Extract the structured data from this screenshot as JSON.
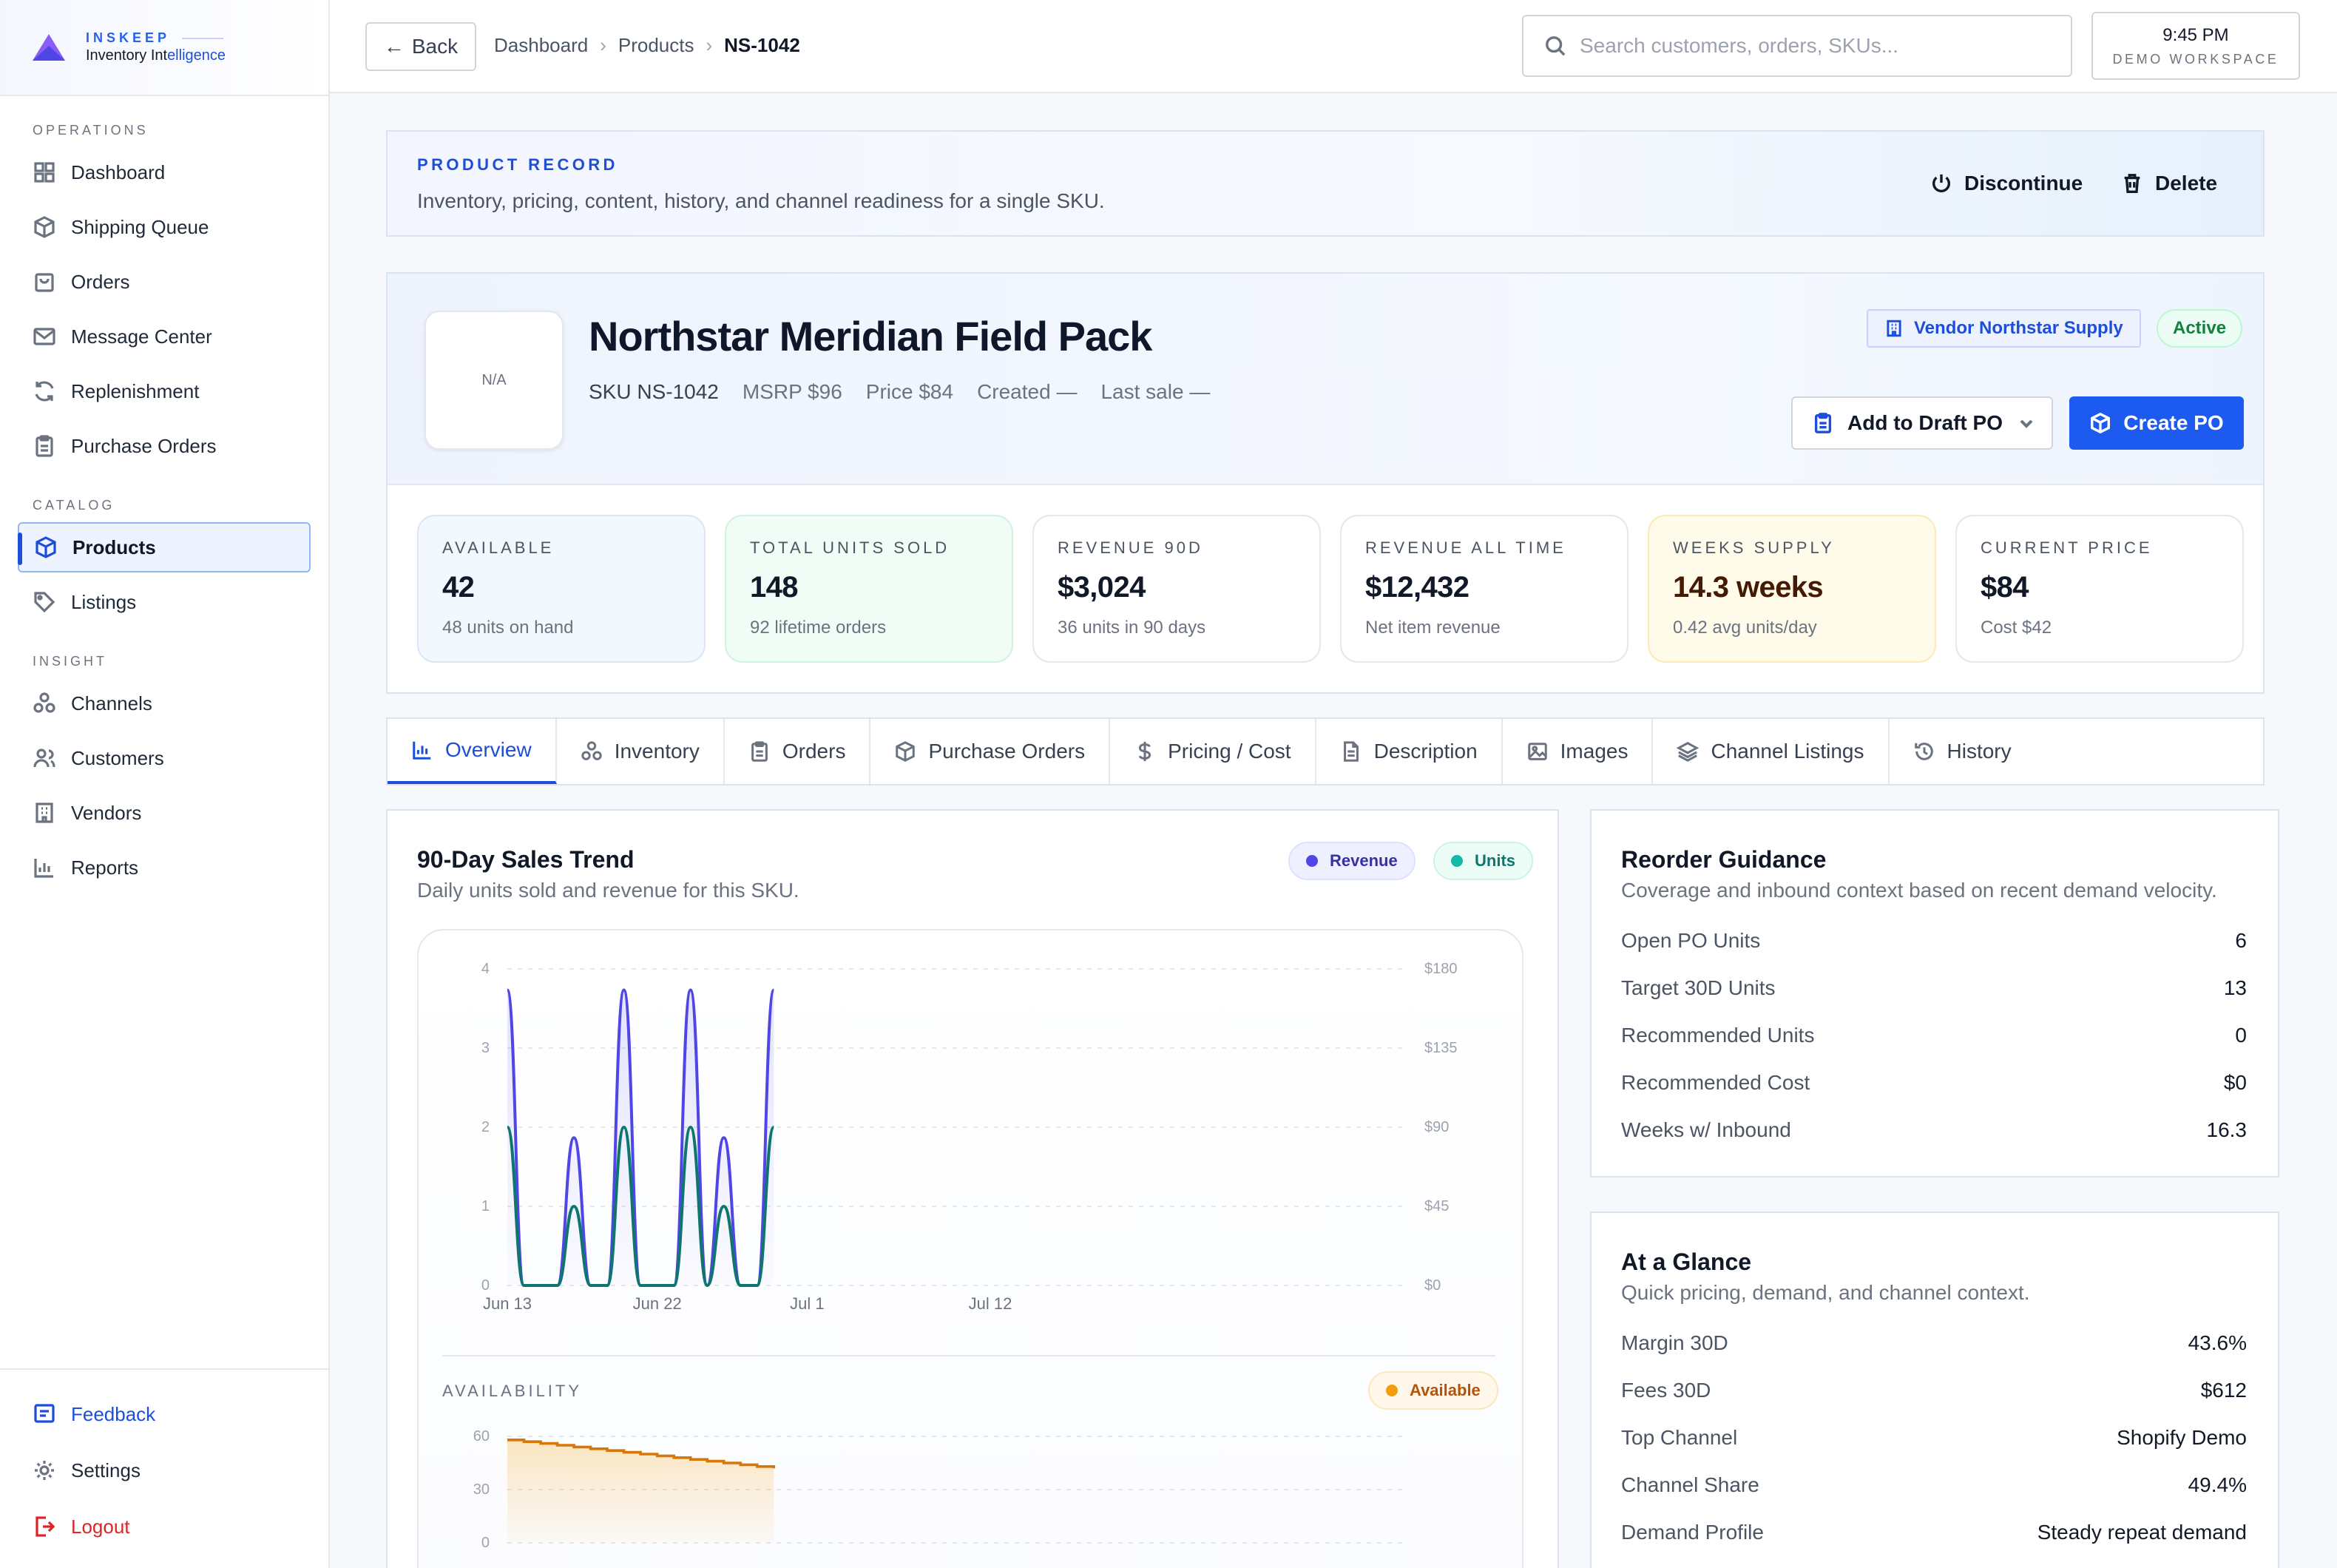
{
  "brand": {
    "name": "INSKEEP",
    "subtitle_main": "Inventory Int",
    "subtitle_accent": "elligence"
  },
  "sidebar": {
    "sections": [
      {
        "label": "OPERATIONS"
      },
      {
        "label": "CATALOG"
      },
      {
        "label": "INSIGHT"
      }
    ],
    "items": [
      {
        "label": "Dashboard",
        "icon": "grid-icon"
      },
      {
        "label": "Shipping Queue",
        "icon": "box-icon"
      },
      {
        "label": "Orders",
        "icon": "bag-icon"
      },
      {
        "label": "Message Center",
        "icon": "mail-icon"
      },
      {
        "label": "Replenishment",
        "icon": "refresh-icon"
      },
      {
        "label": "Purchase Orders",
        "icon": "clipboard-icon"
      },
      {
        "label": "Products",
        "icon": "cube-icon",
        "active": true
      },
      {
        "label": "Listings",
        "icon": "tag-icon"
      },
      {
        "label": "Channels",
        "icon": "network-icon"
      },
      {
        "label": "Customers",
        "icon": "users-icon"
      },
      {
        "label": "Vendors",
        "icon": "building-icon"
      },
      {
        "label": "Reports",
        "icon": "bar-chart-icon"
      }
    ],
    "bottom": [
      {
        "label": "Feedback",
        "icon": "feedback-icon"
      },
      {
        "label": "Settings",
        "icon": "gear-icon"
      },
      {
        "label": "Logout",
        "icon": "logout-icon"
      }
    ]
  },
  "topbar": {
    "back_label": "Back",
    "breadcrumb": [
      "Dashboard",
      "Products",
      "NS-1042"
    ],
    "search_placeholder": "Search customers, orders, SKUs...",
    "time": "9:45 PM",
    "workspace": "DEMO WORKSPACE"
  },
  "record": {
    "title": "PRODUCT RECORD",
    "description": "Inventory, pricing, content, history, and channel readiness for a single SKU.",
    "discontinue_label": "Discontinue",
    "delete_label": "Delete"
  },
  "product": {
    "thumb_text": "N/A",
    "name": "Northstar Meridian Field Pack",
    "sku": "SKU NS-1042",
    "msrp": "MSRP $96",
    "price": "Price $84",
    "created": "Created —",
    "last_sale": "Last sale —",
    "vendor_badge": "Vendor Northstar Supply",
    "status": "Active",
    "draft_label": "Add to Draft PO",
    "create_label": "Create PO"
  },
  "stats": [
    {
      "label": "AVAILABLE",
      "value": "42",
      "sub": "48 units on hand",
      "tone": "blue"
    },
    {
      "label": "TOTAL UNITS SOLD",
      "value": "148",
      "sub": "92 lifetime orders",
      "tone": "green"
    },
    {
      "label": "REVENUE 90D",
      "value": "$3,024",
      "sub": "36 units in 90 days",
      "tone": "white"
    },
    {
      "label": "REVENUE ALL TIME",
      "value": "$12,432",
      "sub": "Net item revenue",
      "tone": "white"
    },
    {
      "label": "WEEKS SUPPLY",
      "value": "14.3 weeks",
      "sub": "0.42 avg units/day",
      "tone": "yellow"
    },
    {
      "label": "CURRENT PRICE",
      "value": "$84",
      "sub": "Cost $42",
      "tone": "white"
    }
  ],
  "tabs": [
    {
      "label": "Overview",
      "icon": "bar-chart-icon",
      "active": true
    },
    {
      "label": "Inventory",
      "icon": "network-icon"
    },
    {
      "label": "Orders",
      "icon": "clipboard-icon"
    },
    {
      "label": "Purchase Orders",
      "icon": "cube-icon"
    },
    {
      "label": "Pricing / Cost",
      "icon": "dollar-icon"
    },
    {
      "label": "Description",
      "icon": "document-icon"
    },
    {
      "label": "Images",
      "icon": "image-icon"
    },
    {
      "label": "Channel Listings",
      "icon": "layers-icon"
    },
    {
      "label": "History",
      "icon": "history-icon"
    }
  ],
  "trend": {
    "title": "90-Day Sales Trend",
    "subtitle": "Daily units sold and revenue for this SKU.",
    "legend_revenue": "Revenue",
    "legend_units": "Units",
    "availability_label": "AVAILABILITY",
    "availability_legend": "Available"
  },
  "chart_data": [
    {
      "type": "line",
      "x_ticks": [
        "Jun 13",
        "Jun 22",
        "Jul 1",
        "Jul 12"
      ],
      "y_left_ticks": [
        "0",
        "1",
        "2",
        "3",
        "4"
      ],
      "y_right_ticks": [
        "$0",
        "$45",
        "$90",
        "$135",
        "$180"
      ],
      "ylim_left": [
        0,
        4
      ],
      "ylim_right": [
        0,
        180
      ],
      "x_days": [
        0,
        1,
        2,
        3,
        4,
        5,
        6,
        7,
        8,
        9,
        10,
        11,
        12,
        13,
        14,
        15,
        16
      ],
      "series": [
        {
          "name": "Revenue",
          "color": "#4f46e5",
          "values": [
            168,
            0,
            0,
            0,
            84,
            0,
            0,
            168,
            0,
            0,
            0,
            168,
            0,
            84,
            0,
            0,
            168
          ]
        },
        {
          "name": "Units",
          "color": "#0f766e",
          "values": [
            2,
            0,
            0,
            0,
            1,
            0,
            0,
            2,
            0,
            0,
            0,
            2,
            0,
            1,
            0,
            0,
            2
          ]
        }
      ],
      "grid": true
    },
    {
      "type": "area",
      "y_ticks": [
        "0",
        "30",
        "60"
      ],
      "ylim": [
        0,
        60
      ],
      "series": [
        {
          "name": "Available",
          "color": "#d97706",
          "values": [
            58,
            57,
            56,
            55,
            54,
            53,
            52,
            51,
            50,
            49,
            48,
            47,
            46,
            45,
            44,
            43,
            42
          ]
        }
      ]
    }
  ],
  "reorder": {
    "title": "Reorder Guidance",
    "subtitle": "Coverage and inbound context based on recent demand velocity.",
    "rows": [
      {
        "k": "Open PO Units",
        "v": "6"
      },
      {
        "k": "Target 30D Units",
        "v": "13"
      },
      {
        "k": "Recommended Units",
        "v": "0"
      },
      {
        "k": "Recommended Cost",
        "v": "$0"
      },
      {
        "k": "Weeks w/ Inbound",
        "v": "16.3"
      }
    ]
  },
  "glance": {
    "title": "At a Glance",
    "subtitle": "Quick pricing, demand, and channel context.",
    "rows": [
      {
        "k": "Margin 30D",
        "v": "43.6%"
      },
      {
        "k": "Fees 30D",
        "v": "$612"
      },
      {
        "k": "Top Channel",
        "v": "Shopify Demo"
      },
      {
        "k": "Channel Share",
        "v": "49.4%"
      },
      {
        "k": "Demand Profile",
        "v": "Steady repeat demand"
      }
    ]
  }
}
